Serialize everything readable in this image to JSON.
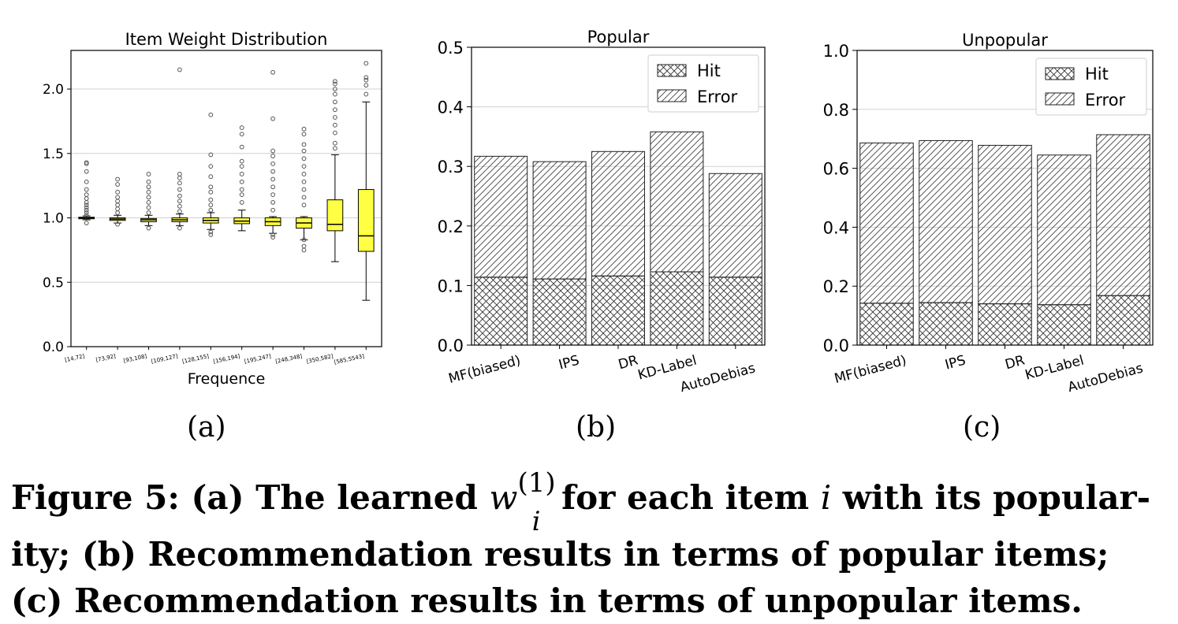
{
  "chart_data": [
    {
      "type": "box",
      "title": "Item Weight Distribution",
      "xlabel": "Frequence",
      "ylabel": "",
      "ylim": [
        0,
        2.3
      ],
      "yticks": [
        "0.0",
        "0.5",
        "1.0",
        "1.5",
        "2.0"
      ],
      "grid": "horizontal",
      "categories": [
        "[14,72]",
        "[73,92]",
        "[93,108]",
        "[109,127]",
        "[128,155]",
        "[156,194]",
        "[195,247]",
        "[248,348]",
        "[350,582]",
        "[585,5543]"
      ],
      "boxes": [
        {
          "q1": 0.995,
          "median": 1.0,
          "q3": 1.005,
          "whislo": 0.985,
          "whishi": 1.015,
          "fliers": [
            0.96,
            1.02,
            1.04,
            1.06,
            1.08,
            1.1,
            1.12,
            1.15,
            1.18,
            1.22,
            1.28,
            1.36,
            1.42,
            1.43
          ]
        },
        {
          "q1": 0.98,
          "median": 0.99,
          "q3": 1.0,
          "whislo": 0.96,
          "whishi": 1.02,
          "fliers": [
            0.95,
            1.04,
            1.07,
            1.1,
            1.13,
            1.16,
            1.2,
            1.26,
            1.3
          ]
        },
        {
          "q1": 0.97,
          "median": 0.985,
          "q3": 0.995,
          "whislo": 0.94,
          "whishi": 1.02,
          "fliers": [
            0.92,
            1.04,
            1.08,
            1.12,
            1.16,
            1.2,
            1.24,
            1.28,
            1.34
          ]
        },
        {
          "q1": 0.97,
          "median": 0.985,
          "q3": 1.0,
          "whislo": 0.94,
          "whishi": 1.03,
          "fliers": [
            0.92,
            1.05,
            1.09,
            1.13,
            1.17,
            1.22,
            1.27,
            1.31,
            1.34,
            2.15
          ]
        },
        {
          "q1": 0.96,
          "median": 0.98,
          "q3": 1.0,
          "whislo": 0.91,
          "whishi": 1.04,
          "fliers": [
            0.87,
            0.89,
            1.06,
            1.1,
            1.14,
            1.2,
            1.24,
            1.32,
            1.4,
            1.49,
            1.8
          ]
        },
        {
          "q1": 0.955,
          "median": 0.975,
          "q3": 1.0,
          "whislo": 0.9,
          "whishi": 1.06,
          "fliers": [
            1.12,
            1.18,
            1.22,
            1.28,
            1.34,
            1.4,
            1.44,
            1.55,
            1.65,
            1.7
          ]
        },
        {
          "q1": 0.94,
          "median": 0.97,
          "q3": 1.0,
          "whislo": 0.88,
          "whishi": 1.01,
          "fliers": [
            0.85,
            0.87,
            1.06,
            1.12,
            1.18,
            1.24,
            1.3,
            1.36,
            1.42,
            1.48,
            1.52,
            1.77,
            2.13
          ]
        },
        {
          "q1": 0.92,
          "median": 0.96,
          "q3": 1.0,
          "whislo": 0.83,
          "whishi": 1.01,
          "fliers": [
            0.75,
            0.78,
            0.83,
            1.1,
            1.16,
            1.22,
            1.28,
            1.34,
            1.4,
            1.46,
            1.52,
            1.57,
            1.65,
            1.69
          ]
        },
        {
          "q1": 0.9,
          "median": 0.95,
          "q3": 1.14,
          "whislo": 0.66,
          "whishi": 1.49,
          "fliers": [
            1.54,
            1.58,
            1.66,
            1.72,
            1.78,
            1.84,
            1.9,
            1.96,
            2.0,
            2.04,
            2.06
          ]
        },
        {
          "q1": 0.74,
          "median": 0.86,
          "q3": 1.22,
          "whislo": 0.36,
          "whishi": 1.9,
          "fliers": [
            1.96,
            2.03,
            2.07,
            2.09,
            2.2
          ]
        }
      ]
    },
    {
      "type": "bar",
      "stacked": true,
      "title": "Popular",
      "xlabel": "",
      "ylabel": "",
      "ylim": [
        0,
        0.5
      ],
      "yticks": [
        "0.0",
        "0.1",
        "0.2",
        "0.3",
        "0.4",
        "0.5"
      ],
      "grid": "horizontal",
      "legend": "top-right",
      "categories": [
        "MF(biased)",
        "IPS",
        "DR",
        "KD-Label",
        "AutoDebias"
      ],
      "series": [
        {
          "name": "Hit",
          "values": [
            0.114,
            0.111,
            0.116,
            0.123,
            0.114
          ]
        },
        {
          "name": "Error",
          "values": [
            0.203,
            0.197,
            0.209,
            0.235,
            0.174
          ]
        }
      ]
    },
    {
      "type": "bar",
      "stacked": true,
      "title": "Unpopular",
      "xlabel": "",
      "ylabel": "",
      "ylim": [
        0,
        1.0
      ],
      "yticks": [
        "0.0",
        "0.2",
        "0.4",
        "0.6",
        "0.8",
        "1.0"
      ],
      "grid": "horizontal",
      "legend": "top-right",
      "categories": [
        "MF(biased)",
        "IPS",
        "DR",
        "KD-Label",
        "AutoDebias"
      ],
      "series": [
        {
          "name": "Hit",
          "values": [
            0.142,
            0.144,
            0.14,
            0.137,
            0.168
          ]
        },
        {
          "name": "Error",
          "values": [
            0.544,
            0.55,
            0.538,
            0.508,
            0.546
          ]
        }
      ]
    }
  ],
  "subfig_labels": [
    "(a)",
    "(b)",
    "(c)"
  ],
  "caption": {
    "prefix": "Figure 5: (a) The learned ",
    "math_var": "w",
    "math_sup": "(1)",
    "math_sub": "i",
    "mid": " for each item ",
    "math_item": "i",
    "rest_line1": " with its popular-",
    "line2": "ity; (b) Recommendation results in terms of popular items;",
    "line3": "(c) Recommendation results in terms of unpopular items."
  },
  "colors": {
    "box_fill": "#ffff44",
    "bar_edge": "#222222",
    "grid": "#d0d0d0"
  }
}
